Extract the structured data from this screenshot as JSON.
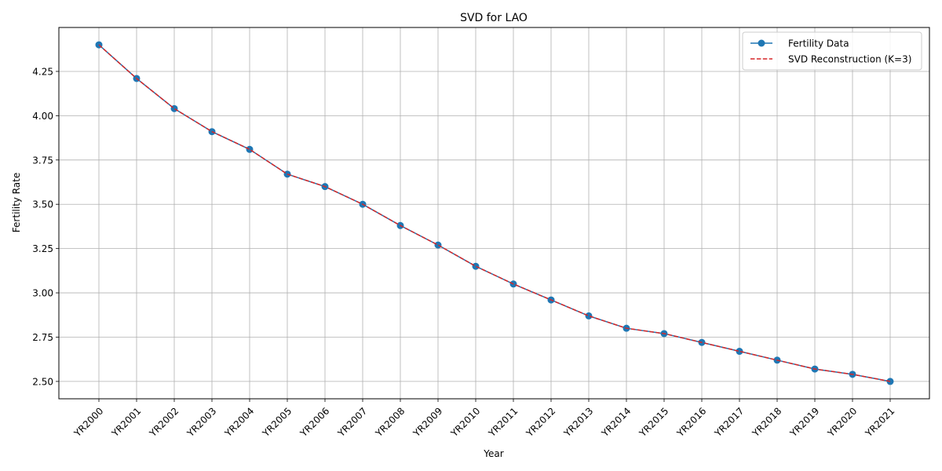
{
  "chart_data": {
    "type": "line",
    "title": "SVD for LAO",
    "xlabel": "Year",
    "ylabel": "Fertility Rate",
    "categories": [
      "YR2000",
      "YR2001",
      "YR2002",
      "YR2003",
      "YR2004",
      "YR2005",
      "YR2006",
      "YR2007",
      "YR2008",
      "YR2009",
      "YR2010",
      "YR2011",
      "YR2012",
      "YR2013",
      "YR2014",
      "YR2015",
      "YR2016",
      "YR2017",
      "YR2018",
      "YR2019",
      "YR2020",
      "YR2021"
    ],
    "ylim": [
      2.402,
      4.498
    ],
    "yticks": [
      2.5,
      2.75,
      3.0,
      3.25,
      3.5,
      3.75,
      4.0,
      4.25
    ],
    "ytick_labels": [
      "2.50",
      "2.75",
      "3.00",
      "3.25",
      "3.50",
      "3.75",
      "4.00",
      "4.25"
    ],
    "grid": true,
    "legend_position": "top-right",
    "series": [
      {
        "name": "Fertility Data",
        "style": "solid-line-circle-markers",
        "color": "#1f77b4",
        "values": [
          4.4,
          4.21,
          4.04,
          3.91,
          3.81,
          3.67,
          3.6,
          3.5,
          3.38,
          3.27,
          3.15,
          3.05,
          2.96,
          2.87,
          2.8,
          2.77,
          2.72,
          2.67,
          2.62,
          2.57,
          2.54,
          2.5
        ]
      },
      {
        "name": "SVD Reconstruction (K=3)",
        "style": "dashed-line",
        "color": "#d62728",
        "values": [
          4.4,
          4.21,
          4.04,
          3.91,
          3.81,
          3.67,
          3.6,
          3.5,
          3.38,
          3.27,
          3.15,
          3.05,
          2.96,
          2.87,
          2.8,
          2.77,
          2.72,
          2.67,
          2.62,
          2.57,
          2.54,
          2.5
        ]
      }
    ]
  }
}
